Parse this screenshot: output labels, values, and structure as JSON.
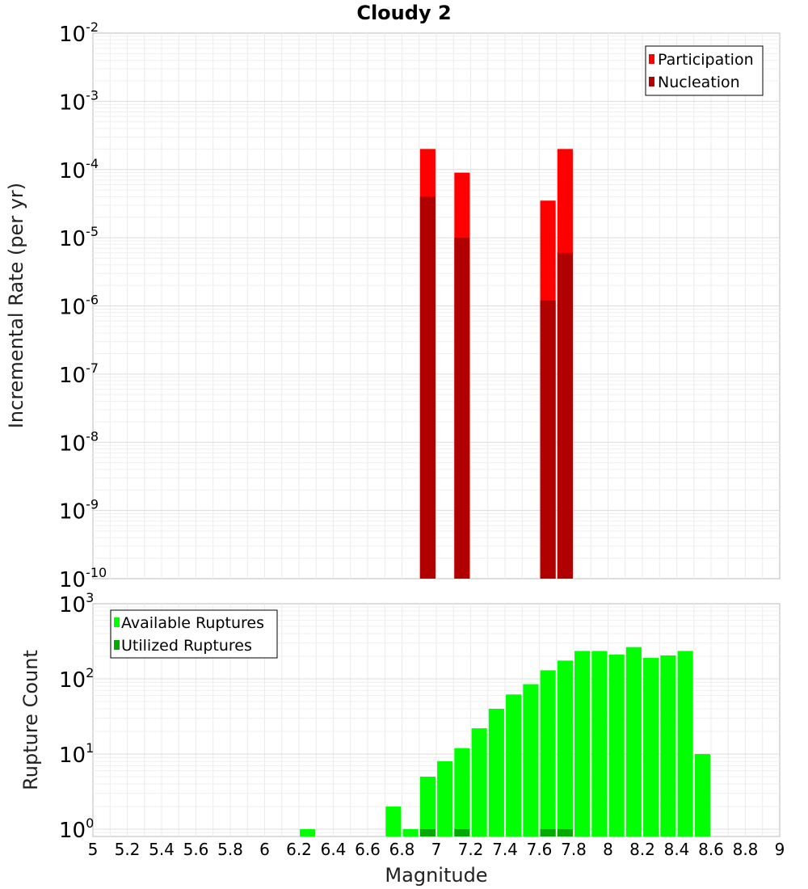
{
  "title": "Cloudy 2",
  "xlabel": "Magnitude",
  "x_ticks": [
    "5",
    "5.2",
    "5.4",
    "5.6",
    "5.8",
    "6",
    "6.2",
    "6.4",
    "6.6",
    "6.8",
    "7",
    "7.2",
    "7.4",
    "7.6",
    "7.8",
    "8",
    "8.2",
    "8.4",
    "8.6",
    "8.8",
    "9"
  ],
  "chart_data": [
    {
      "type": "bar",
      "title": "Cloudy 2",
      "xlabel": "",
      "ylabel": "Incremental Rate (per yr)",
      "yscale": "log",
      "xlim": [
        5,
        9
      ],
      "ylim": [
        1e-10,
        0.01
      ],
      "y_ticks": [
        {
          "base": "10",
          "exp": "-2"
        },
        {
          "base": "10",
          "exp": "-3"
        },
        {
          "base": "10",
          "exp": "-4"
        },
        {
          "base": "10",
          "exp": "-5"
        },
        {
          "base": "10",
          "exp": "-6"
        },
        {
          "base": "10",
          "exp": "-7"
        },
        {
          "base": "10",
          "exp": "-8"
        },
        {
          "base": "10",
          "exp": "-9"
        },
        {
          "base": "10",
          "exp": "-10"
        }
      ],
      "legend_position": "top-right",
      "bar_width": 0.09,
      "x": [
        6.95,
        7.15,
        7.65,
        7.75
      ],
      "series": [
        {
          "name": "Participation",
          "color": "#ff0000",
          "values": [
            0.0002,
            9e-05,
            3.5e-05,
            0.0002
          ]
        },
        {
          "name": "Nucleation",
          "color": "#b00000",
          "values": [
            4e-05,
            1e-05,
            1.2e-06,
            6e-06
          ]
        }
      ],
      "grid": true
    },
    {
      "type": "bar",
      "xlabel": "Magnitude",
      "ylabel": "Rupture Count",
      "yscale": "log",
      "xlim": [
        5,
        9
      ],
      "ylim": [
        0.8,
        1000
      ],
      "y_ticks": [
        {
          "base": "10",
          "exp": "3"
        },
        {
          "base": "10",
          "exp": "2"
        },
        {
          "base": "10",
          "exp": "1"
        },
        {
          "base": "10",
          "exp": "0"
        }
      ],
      "legend_position": "top-left",
      "bar_width": 0.09,
      "x": [
        6.25,
        6.75,
        6.85,
        6.95,
        7.05,
        7.15,
        7.25,
        7.35,
        7.45,
        7.55,
        7.65,
        7.75,
        7.85,
        7.95,
        8.05,
        8.15,
        8.25,
        8.35,
        8.45,
        8.55
      ],
      "series": [
        {
          "name": "Available Ruptures",
          "color": "#00ff00",
          "values": [
            1,
            2,
            1,
            5,
            8,
            12,
            22,
            40,
            62,
            85,
            130,
            175,
            235,
            235,
            210,
            265,
            190,
            205,
            235,
            10
          ]
        },
        {
          "name": "Utilized Ruptures",
          "color": "#00aa00",
          "values": [
            0,
            0,
            0,
            1,
            0,
            1,
            0,
            0,
            0,
            0,
            1,
            1,
            0,
            0,
            0,
            0,
            0,
            0,
            0,
            0
          ]
        }
      ],
      "grid": true
    }
  ]
}
